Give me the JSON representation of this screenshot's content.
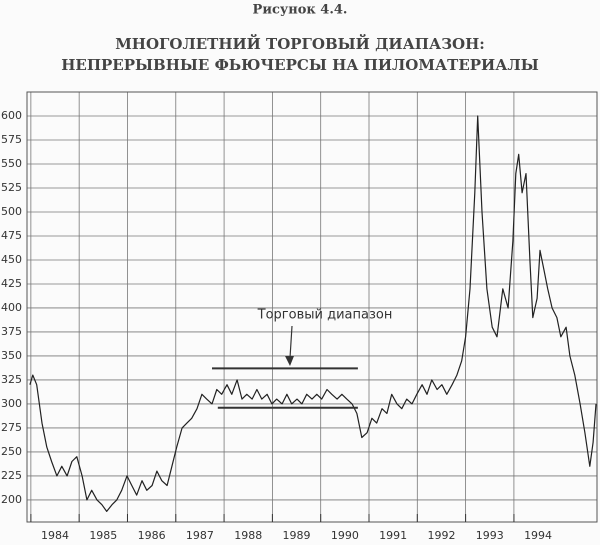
{
  "chart_data": {
    "type": "line",
    "figure_label": "Рисунок 4.4.",
    "title": [
      "МНОГОЛЕТНИЙ ТОРГОВЫЙ ДИАПАЗОН:",
      "НЕПРЕРЫВНЫЕ ФЬЮЧЕРСЫ НА ПИЛОМАТЕРИАЛЫ"
    ],
    "annotation": "Торговый диапазон",
    "range_lines": [
      {
        "y": 337,
        "x": [
          1987.75,
          1990.77
        ]
      },
      {
        "y": 296,
        "x": [
          1987.87,
          1990.77
        ]
      }
    ],
    "x": [
      1983.98,
      1984.04,
      1984.12,
      1984.23,
      1984.33,
      1984.43,
      1984.54,
      1984.64,
      1984.75,
      1984.85,
      1984.95,
      1985.06,
      1985.16,
      1985.26,
      1985.37,
      1985.47,
      1985.57,
      1985.68,
      1985.78,
      1985.88,
      1985.99,
      1986.09,
      1986.19,
      1986.3,
      1986.4,
      1986.51,
      1986.61,
      1986.71,
      1986.82,
      1986.92,
      1987.02,
      1987.13,
      1987.23,
      1987.33,
      1987.44,
      1987.54,
      1987.64,
      1987.75,
      1987.85,
      1987.95,
      1988.06,
      1988.16,
      1988.27,
      1988.37,
      1988.47,
      1988.58,
      1988.68,
      1988.78,
      1988.89,
      1988.99,
      1989.09,
      1989.2,
      1989.3,
      1989.4,
      1989.51,
      1989.61,
      1989.71,
      1989.82,
      1989.92,
      1990.02,
      1990.13,
      1990.23,
      1990.34,
      1990.44,
      1990.54,
      1990.65,
      1990.75,
      1990.85,
      1990.96,
      1991.06,
      1991.16,
      1991.27,
      1991.37,
      1991.47,
      1991.58,
      1991.68,
      1991.78,
      1991.89,
      1991.99,
      1992.1,
      1992.2,
      1992.3,
      1992.41,
      1992.51,
      1992.61,
      1992.72,
      1992.82,
      1992.92,
      1993.0,
      1993.09,
      1993.19,
      1993.25,
      1993.34,
      1993.44,
      1993.55,
      1993.65,
      1993.77,
      1993.88,
      1993.98,
      1994.04,
      1994.1,
      1994.17,
      1994.25,
      1994.33,
      1994.39,
      1994.48,
      1994.54,
      1994.62,
      1994.7,
      1994.79,
      1994.89,
      1994.97,
      1995.08,
      1995.16,
      1995.26,
      1995.37,
      1995.47,
      1995.57,
      1995.64,
      1995.7
    ],
    "series": [
      {
        "color": "#222222",
        "values": [
          320,
          330,
          320,
          280,
          255,
          240,
          225,
          235,
          225,
          240,
          245,
          225,
          200,
          210,
          200,
          195,
          188,
          195,
          200,
          210,
          225,
          215,
          205,
          220,
          210,
          215,
          230,
          220,
          215,
          235,
          255,
          275,
          280,
          285,
          295,
          310,
          305,
          300,
          315,
          310,
          320,
          310,
          325,
          305,
          310,
          305,
          315,
          305,
          310,
          300,
          305,
          300,
          310,
          300,
          305,
          300,
          310,
          305,
          310,
          305,
          315,
          310,
          305,
          310,
          305,
          300,
          290,
          265,
          270,
          285,
          280,
          295,
          290,
          310,
          300,
          295,
          305,
          300,
          310,
          320,
          310,
          325,
          315,
          320,
          310,
          320,
          330,
          345,
          370,
          420,
          520,
          600,
          500,
          420,
          380,
          370,
          420,
          400,
          470,
          540,
          560,
          520,
          540,
          450,
          390,
          410,
          460,
          440,
          420,
          400,
          390,
          370,
          380,
          350,
          330,
          300,
          270,
          235,
          260,
          300
        ]
      }
    ],
    "xlim": [
      1983.92,
      1995.72
    ],
    "xticks": [
      1984,
      1985,
      1986,
      1987,
      1988,
      1989,
      1990,
      1991,
      1992,
      1993,
      1994
    ],
    "ylim": [
      177,
      625
    ],
    "yticks": [
      200,
      225,
      250,
      275,
      300,
      325,
      350,
      375,
      400,
      425,
      450,
      475,
      500,
      525,
      550,
      575,
      600
    ],
    "grid": true
  }
}
